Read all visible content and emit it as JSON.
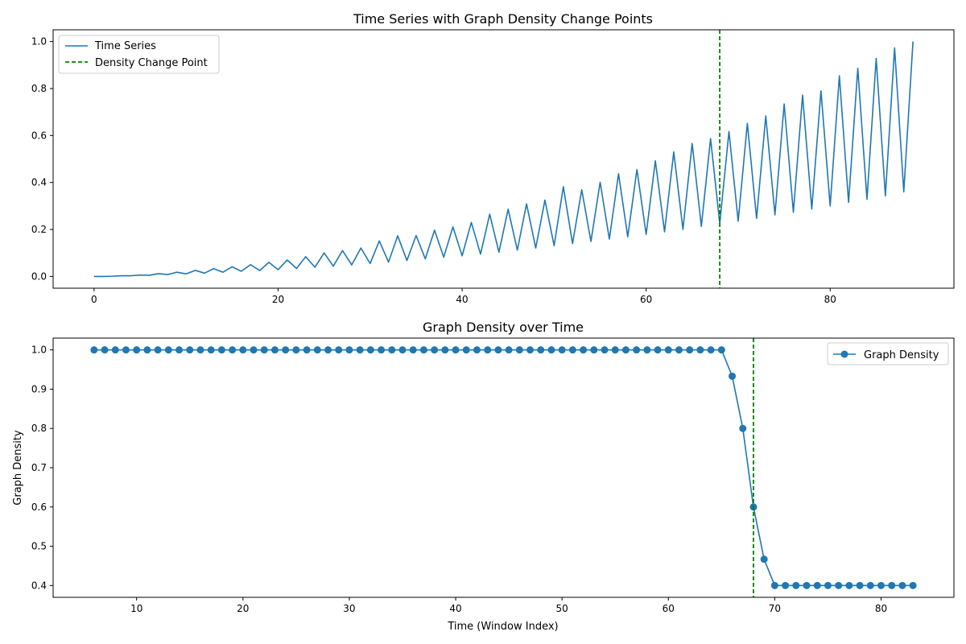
{
  "colors": {
    "series": "#1f77b4",
    "change_point": "#008000",
    "axes": "#000000",
    "legend_border": "#cccccc"
  },
  "chart_data": [
    {
      "type": "line",
      "title": "Time Series with Graph Density Change Points",
      "xlabel": "",
      "ylabel": "",
      "xlim": [
        -4.45,
        93.45
      ],
      "ylim": [
        -0.05,
        1.05
      ],
      "xticks": [
        0,
        20,
        40,
        60,
        80
      ],
      "yticks": [
        0.0,
        0.2,
        0.4,
        0.6,
        0.8,
        1.0
      ],
      "xtick_labels": [
        "0",
        "20",
        "40",
        "60",
        "80"
      ],
      "ytick_labels": [
        "0.0",
        "0.2",
        "0.4",
        "0.6",
        "0.8",
        "1.0"
      ],
      "grid": false,
      "legend_position": "top-left",
      "series": [
        {
          "name": "Time Series",
          "marker": "none",
          "x": [
            0,
            1,
            2,
            3,
            4,
            5,
            6,
            7,
            8,
            9,
            10,
            11,
            12,
            13,
            14,
            15,
            16,
            17,
            18,
            19,
            20,
            21,
            22,
            23,
            24,
            25,
            26,
            27,
            28,
            29,
            30,
            31,
            32,
            33,
            34,
            35,
            36,
            37,
            38,
            39,
            40,
            41,
            42,
            43,
            44,
            45,
            46,
            47,
            48,
            49,
            50,
            51,
            52,
            53,
            54,
            55,
            56,
            57,
            58,
            59,
            60,
            61,
            62,
            63,
            64,
            65,
            66,
            67,
            68,
            69,
            70,
            71,
            72,
            73,
            74,
            75,
            76,
            77,
            78,
            79,
            80,
            81,
            82,
            83,
            84,
            85,
            86,
            87,
            88,
            89
          ],
          "y": [
            0.0,
            0.0,
            0.001,
            0.003,
            0.003,
            0.006,
            0.005,
            0.012,
            0.008,
            0.018,
            0.011,
            0.026,
            0.014,
            0.033,
            0.018,
            0.041,
            0.022,
            0.05,
            0.025,
            0.06,
            0.029,
            0.07,
            0.034,
            0.084,
            0.039,
            0.1,
            0.044,
            0.11,
            0.049,
            0.121,
            0.055,
            0.151,
            0.061,
            0.173,
            0.068,
            0.174,
            0.075,
            0.197,
            0.082,
            0.211,
            0.088,
            0.23,
            0.095,
            0.265,
            0.103,
            0.286,
            0.112,
            0.309,
            0.121,
            0.325,
            0.131,
            0.382,
            0.14,
            0.369,
            0.149,
            0.401,
            0.159,
            0.437,
            0.169,
            0.455,
            0.179,
            0.492,
            0.19,
            0.53,
            0.2,
            0.566,
            0.213,
            0.587,
            0.225,
            0.617,
            0.235,
            0.652,
            0.247,
            0.683,
            0.262,
            0.734,
            0.273,
            0.772,
            0.287,
            0.79,
            0.3,
            0.854,
            0.315,
            0.886,
            0.328,
            0.928,
            0.343,
            0.973,
            0.36,
            1.0
          ]
        }
      ],
      "change_points": [
        {
          "name": "Density Change Point",
          "x": 68
        }
      ]
    },
    {
      "type": "line",
      "title": "Graph Density over Time",
      "xlabel": "Time (Window Index)",
      "ylabel": "Graph Density",
      "xlim": [
        2.15,
        86.85
      ],
      "ylim": [
        0.37,
        1.03
      ],
      "xticks": [
        10,
        20,
        30,
        40,
        50,
        60,
        70,
        80
      ],
      "yticks": [
        0.4,
        0.5,
        0.6,
        0.7,
        0.8,
        0.9,
        1.0
      ],
      "xtick_labels": [
        "10",
        "20",
        "30",
        "40",
        "50",
        "60",
        "70",
        "80"
      ],
      "ytick_labels": [
        "0.4",
        "0.5",
        "0.6",
        "0.7",
        "0.8",
        "0.9",
        "1.0"
      ],
      "grid": false,
      "legend_position": "top-right",
      "series": [
        {
          "name": "Graph Density",
          "marker": "circle",
          "x": [
            6,
            7,
            8,
            9,
            10,
            11,
            12,
            13,
            14,
            15,
            16,
            17,
            18,
            19,
            20,
            21,
            22,
            23,
            24,
            25,
            26,
            27,
            28,
            29,
            30,
            31,
            32,
            33,
            34,
            35,
            36,
            37,
            38,
            39,
            40,
            41,
            42,
            43,
            44,
            45,
            46,
            47,
            48,
            49,
            50,
            51,
            52,
            53,
            54,
            55,
            56,
            57,
            58,
            59,
            60,
            61,
            62,
            63,
            64,
            65,
            66,
            67,
            68,
            69,
            70,
            71,
            72,
            73,
            74,
            75,
            76,
            77,
            78,
            79,
            80,
            81,
            82,
            83
          ],
          "y": [
            1.0,
            1.0,
            1.0,
            1.0,
            1.0,
            1.0,
            1.0,
            1.0,
            1.0,
            1.0,
            1.0,
            1.0,
            1.0,
            1.0,
            1.0,
            1.0,
            1.0,
            1.0,
            1.0,
            1.0,
            1.0,
            1.0,
            1.0,
            1.0,
            1.0,
            1.0,
            1.0,
            1.0,
            1.0,
            1.0,
            1.0,
            1.0,
            1.0,
            1.0,
            1.0,
            1.0,
            1.0,
            1.0,
            1.0,
            1.0,
            1.0,
            1.0,
            1.0,
            1.0,
            1.0,
            1.0,
            1.0,
            1.0,
            1.0,
            1.0,
            1.0,
            1.0,
            1.0,
            1.0,
            1.0,
            1.0,
            1.0,
            1.0,
            1.0,
            1.0,
            0.933,
            0.8,
            0.6,
            0.467,
            0.4,
            0.4,
            0.4,
            0.4,
            0.4,
            0.4,
            0.4,
            0.4,
            0.4,
            0.4,
            0.4,
            0.4,
            0.4,
            0.4
          ]
        }
      ],
      "change_points": [
        {
          "name": "",
          "x": 68
        }
      ]
    }
  ]
}
